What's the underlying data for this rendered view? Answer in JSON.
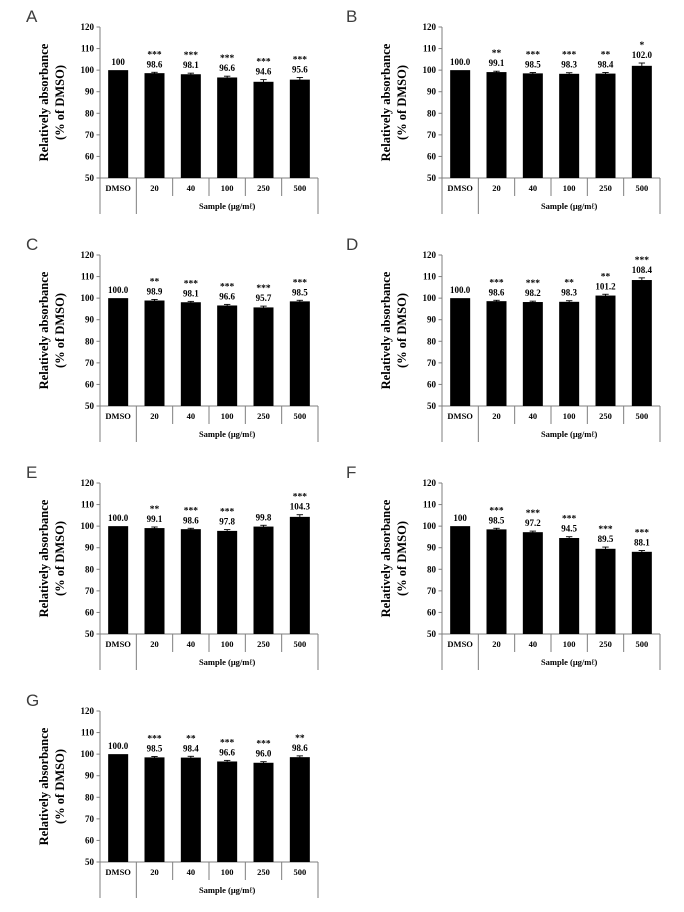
{
  "chart_data": [
    {
      "type": "bar",
      "panel": "A",
      "categories": [
        "DMSO",
        "20",
        "40",
        "100",
        "250",
        "500"
      ],
      "values": [
        100,
        98.6,
        98.1,
        96.6,
        94.6,
        95.6
      ],
      "value_labels": [
        "100",
        "98.6",
        "98.1",
        "96.6",
        "94.6",
        "95.6"
      ],
      "significance": [
        "",
        "***",
        "***",
        "***",
        "***",
        "***"
      ],
      "error_bars": [
        0,
        0.4,
        0.5,
        0.6,
        1.0,
        1.0
      ],
      "xlabel": "Sample (μg/mℓ)",
      "ylabel_lines": [
        "Relatively absorbance",
        "(% of DMSO)"
      ],
      "ylim": [
        50,
        120
      ],
      "yticks": [
        50,
        60,
        70,
        80,
        90,
        100,
        110,
        120
      ],
      "bar_color": "#000000",
      "axis_color": "#7f7f7f",
      "text_color": "#000000",
      "grid": false,
      "legend": "none"
    },
    {
      "type": "bar",
      "panel": "B",
      "categories": [
        "DMSO",
        "20",
        "40",
        "100",
        "250",
        "500"
      ],
      "values": [
        100.0,
        99.1,
        98.5,
        98.3,
        98.4,
        102.0
      ],
      "value_labels": [
        "100.0",
        "99.1",
        "98.5",
        "98.3",
        "98.4",
        "102.0"
      ],
      "significance": [
        "",
        "**",
        "***",
        "***",
        "**",
        "*"
      ],
      "error_bars": [
        0,
        0.4,
        0.4,
        0.5,
        0.5,
        1.3
      ],
      "xlabel": "Sample (μg/mℓ)",
      "ylabel_lines": [
        "Relatively absorbance",
        "(% of DMSO)"
      ],
      "ylim": [
        50,
        120
      ],
      "yticks": [
        50,
        60,
        70,
        80,
        90,
        100,
        110,
        120
      ],
      "bar_color": "#000000",
      "axis_color": "#7f7f7f",
      "text_color": "#000000",
      "grid": false,
      "legend": "none"
    },
    {
      "type": "bar",
      "panel": "C",
      "categories": [
        "DMSO",
        "20",
        "40",
        "100",
        "250",
        "500"
      ],
      "values": [
        100.0,
        98.9,
        98.1,
        96.6,
        95.7,
        98.5
      ],
      "value_labels": [
        "100.0",
        "98.9",
        "98.1",
        "96.6",
        "95.7",
        "98.5"
      ],
      "significance": [
        "",
        "**",
        "***",
        "***",
        "***",
        "***"
      ],
      "error_bars": [
        0,
        0.5,
        0.4,
        0.5,
        0.6,
        0.5
      ],
      "xlabel": "Sample (μg/mℓ)",
      "ylabel_lines": [
        "Relatively absorbance",
        "(% of DMSO)"
      ],
      "ylim": [
        50,
        120
      ],
      "yticks": [
        50,
        60,
        70,
        80,
        90,
        100,
        110,
        120
      ],
      "bar_color": "#000000",
      "axis_color": "#7f7f7f",
      "text_color": "#000000",
      "grid": false,
      "legend": "none"
    },
    {
      "type": "bar",
      "panel": "D",
      "categories": [
        "DMSO",
        "20",
        "40",
        "100",
        "250",
        "500"
      ],
      "values": [
        100.0,
        98.6,
        98.2,
        98.3,
        101.2,
        108.4
      ],
      "value_labels": [
        "100.0",
        "98.6",
        "98.2",
        "98.3",
        "101.2",
        "108.4"
      ],
      "significance": [
        "",
        "***",
        "***",
        "**",
        "**",
        "***"
      ],
      "error_bars": [
        0,
        0.4,
        0.4,
        0.5,
        0.6,
        1.0
      ],
      "xlabel": "Sample (μg/mℓ)",
      "ylabel_lines": [
        "Relatively absorbance",
        "(% of DMSO)"
      ],
      "ylim": [
        50,
        120
      ],
      "yticks": [
        50,
        60,
        70,
        80,
        90,
        100,
        110,
        120
      ],
      "bar_color": "#000000",
      "axis_color": "#7f7f7f",
      "text_color": "#000000",
      "grid": false,
      "legend": "none"
    },
    {
      "type": "bar",
      "panel": "E",
      "categories": [
        "DMSO",
        "20",
        "40",
        "100",
        "250",
        "500"
      ],
      "values": [
        100.0,
        99.1,
        98.6,
        97.8,
        99.8,
        104.3
      ],
      "value_labels": [
        "100.0",
        "99.1",
        "98.6",
        "97.8",
        "99.8",
        "104.3"
      ],
      "significance": [
        "",
        "**",
        "***",
        "***",
        "",
        "***"
      ],
      "error_bars": [
        0,
        0.5,
        0.4,
        0.6,
        0.6,
        1.0
      ],
      "xlabel": "Sample (μg/mℓ)",
      "ylabel_lines": [
        "Relatively absorbance",
        "(% of DMSO)"
      ],
      "ylim": [
        50,
        120
      ],
      "yticks": [
        50,
        60,
        70,
        80,
        90,
        100,
        110,
        120
      ],
      "bar_color": "#000000",
      "axis_color": "#7f7f7f",
      "text_color": "#000000",
      "grid": false,
      "legend": "none"
    },
    {
      "type": "bar",
      "panel": "F",
      "categories": [
        "DMSO",
        "20",
        "40",
        "100",
        "250",
        "500"
      ],
      "values": [
        100,
        98.5,
        97.2,
        94.5,
        89.5,
        88.1
      ],
      "value_labels": [
        "100",
        "98.5",
        "97.2",
        "94.5",
        "89.5",
        "88.1"
      ],
      "significance": [
        "",
        "***",
        "***",
        "***",
        "***",
        "***"
      ],
      "error_bars": [
        0,
        0.5,
        0.5,
        0.6,
        0.8,
        0.6
      ],
      "xlabel": "Sample (μg/mℓ)",
      "ylabel_lines": [
        "Relatively absorbance",
        "(% of DMSO)"
      ],
      "ylim": [
        50,
        120
      ],
      "yticks": [
        50,
        60,
        70,
        80,
        90,
        100,
        110,
        120
      ],
      "bar_color": "#000000",
      "axis_color": "#7f7f7f",
      "text_color": "#000000",
      "grid": false,
      "legend": "none"
    },
    {
      "type": "bar",
      "panel": "G",
      "categories": [
        "DMSO",
        "20",
        "40",
        "100",
        "250",
        "500"
      ],
      "values": [
        100.0,
        98.5,
        98.4,
        96.6,
        96.0,
        98.6
      ],
      "value_labels": [
        "100.0",
        "98.5",
        "98.4",
        "96.6",
        "96.0",
        "98.6"
      ],
      "significance": [
        "",
        "***",
        "**",
        "***",
        "***",
        "**"
      ],
      "error_bars": [
        0,
        0.4,
        0.6,
        0.5,
        0.5,
        0.6
      ],
      "xlabel": "Sample (μg/mℓ)",
      "ylabel_lines": [
        "Relatively absorbance",
        "(% of DMSO)"
      ],
      "ylim": [
        50,
        120
      ],
      "yticks": [
        50,
        60,
        70,
        80,
        90,
        100,
        110,
        120
      ],
      "bar_color": "#000000",
      "axis_color": "#7f7f7f",
      "text_color": "#000000",
      "grid": false,
      "legend": "none"
    }
  ]
}
